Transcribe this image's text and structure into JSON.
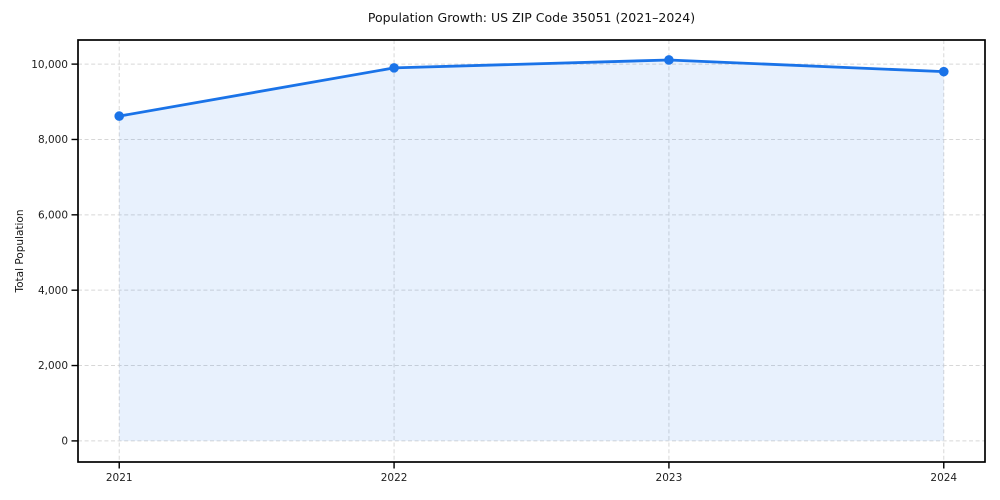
{
  "chart_data": {
    "type": "area",
    "title": "Population Growth: US ZIP Code 35051 (2021–2024)",
    "xlabel": "",
    "ylabel": "Total Population",
    "categories": [
      "2021",
      "2022",
      "2023",
      "2024"
    ],
    "x": [
      2021,
      2022,
      2023,
      2024
    ],
    "values": [
      8620,
      9900,
      10110,
      9800
    ],
    "series": [
      {
        "name": "Total Population",
        "values": [
          8620,
          9900,
          10110,
          9800
        ]
      }
    ],
    "yticks": [
      0,
      2000,
      4000,
      6000,
      8000,
      10000
    ],
    "ytick_labels": [
      "0",
      "2,000",
      "4,000",
      "6,000",
      "8,000",
      "10,000"
    ],
    "xlim": [
      2020.85,
      2024.15
    ],
    "ylim": [
      -560,
      10640
    ],
    "fill_baseline": 0,
    "grid": true,
    "legend": "none",
    "line_color": "#1a73e8",
    "marker_color": "#1a73e8",
    "fill_color": "rgba(26,115,232,0.10)",
    "grid_color": "#d7d7d7",
    "axis_color": "#000000",
    "tick_label_color": "#1f1f1f",
    "background_color": "#ffffff"
  }
}
